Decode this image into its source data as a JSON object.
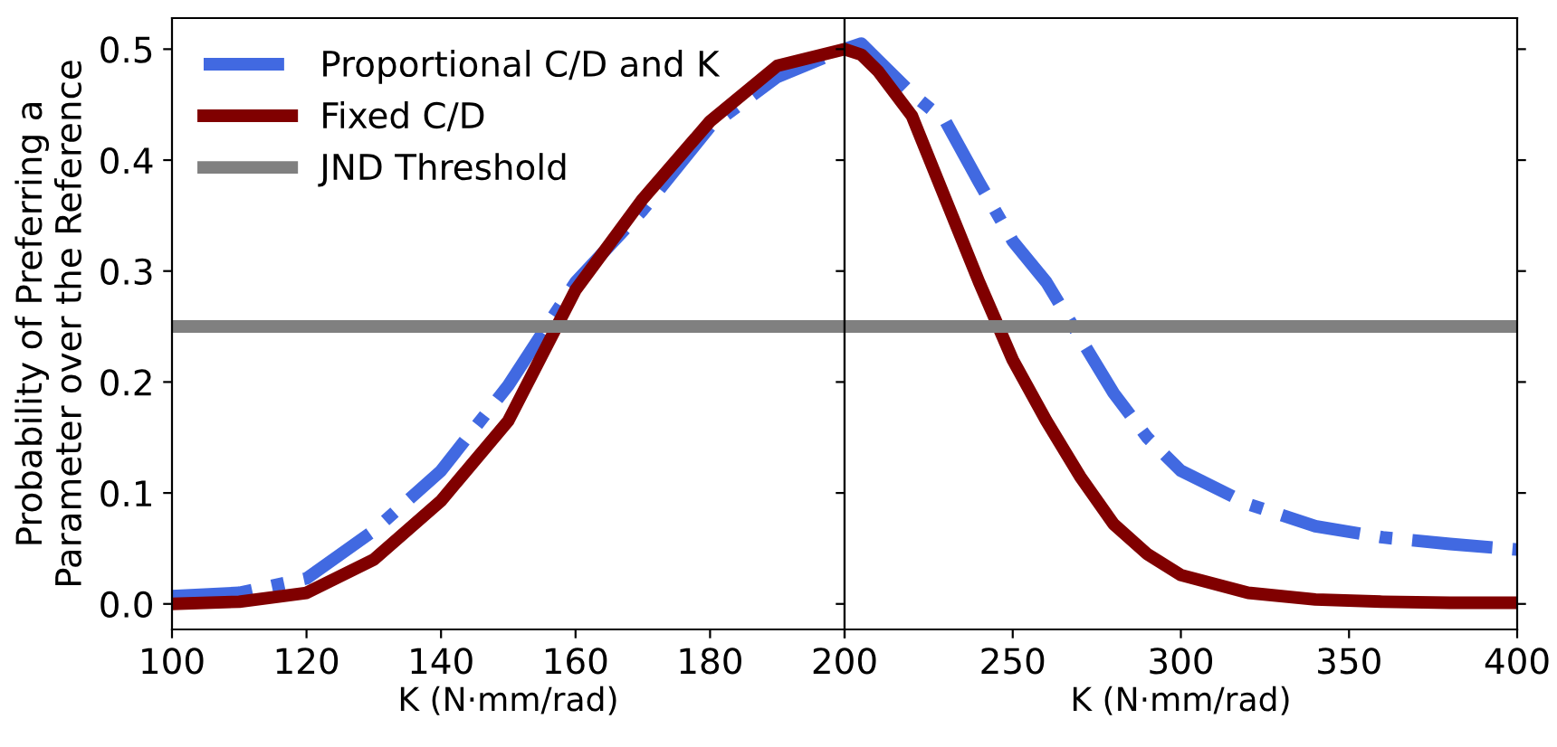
{
  "chart_data": [
    {
      "type": "line",
      "ylabel": "Probability of Preferring a\nParameter over the Reference",
      "xlabel": "K (N·mm/rad)",
      "xlim": [
        100,
        200
      ],
      "xticks": [
        100,
        120,
        140,
        160,
        180,
        200
      ],
      "ylim": [
        -0.023,
        0.528
      ],
      "yticks": [
        {
          "value": 0,
          "label": "0.0"
        },
        0.1,
        0.2,
        0.3,
        0.4,
        0.5
      ],
      "legend": "top left",
      "grid": false,
      "x": [
        100,
        110,
        120,
        130,
        140,
        150,
        160,
        170,
        180,
        190,
        200
      ],
      "series": [
        {
          "name": "Proportional C/D and K",
          "color": "#4169e1",
          "line_style": "dashdot",
          "values": [
            0.007,
            0.01,
            0.023,
            0.066,
            0.12,
            0.197,
            0.29,
            0.355,
            0.43,
            0.475,
            0.5
          ]
        },
        {
          "name": "Fixed C/D",
          "color": "#800000",
          "line_style": "solid",
          "values": [
            0.0,
            0.002,
            0.01,
            0.04,
            0.093,
            0.165,
            0.283,
            0.365,
            0.435,
            0.485,
            0.5
          ]
        }
      ],
      "ref_lines": [
        {
          "axis": "y",
          "value": 0.25,
          "label": "JND Threshold",
          "color": "#808080"
        }
      ]
    },
    {
      "type": "line",
      "xlabel": "K (N·mm/rad)",
      "xlim": [
        200,
        400
      ],
      "xticks": [
        {
          "value": 200,
          "label": null
        },
        250,
        300,
        350,
        400
      ],
      "ylim": [
        -0.023,
        0.528
      ],
      "yticks": [
        0,
        0.1,
        0.2,
        0.3,
        0.4,
        0.5
      ],
      "tick_labels": "x",
      "grid": false,
      "x": [
        200,
        205,
        210,
        220,
        230,
        240,
        250,
        260,
        270,
        280,
        290,
        300,
        320,
        340,
        360,
        380,
        400
      ],
      "series": [
        {
          "color": "#4169e1",
          "line_style": "dashdot",
          "values": [
            0.5,
            0.505,
            0.49,
            0.46,
            0.435,
            0.38,
            0.327,
            0.29,
            0.24,
            0.19,
            0.15,
            0.12,
            0.09,
            0.07,
            0.06,
            0.054,
            0.049
          ]
        },
        {
          "color": "#800000",
          "line_style": "solid",
          "values": [
            0.5,
            0.495,
            0.48,
            0.44,
            0.365,
            0.29,
            0.22,
            0.165,
            0.115,
            0.072,
            0.045,
            0.026,
            0.01,
            0.004,
            0.002,
            0.001,
            0.001
          ]
        }
      ],
      "ref_lines": [
        {
          "axis": "y",
          "value": 0.25,
          "color": "#808080"
        }
      ]
    }
  ]
}
